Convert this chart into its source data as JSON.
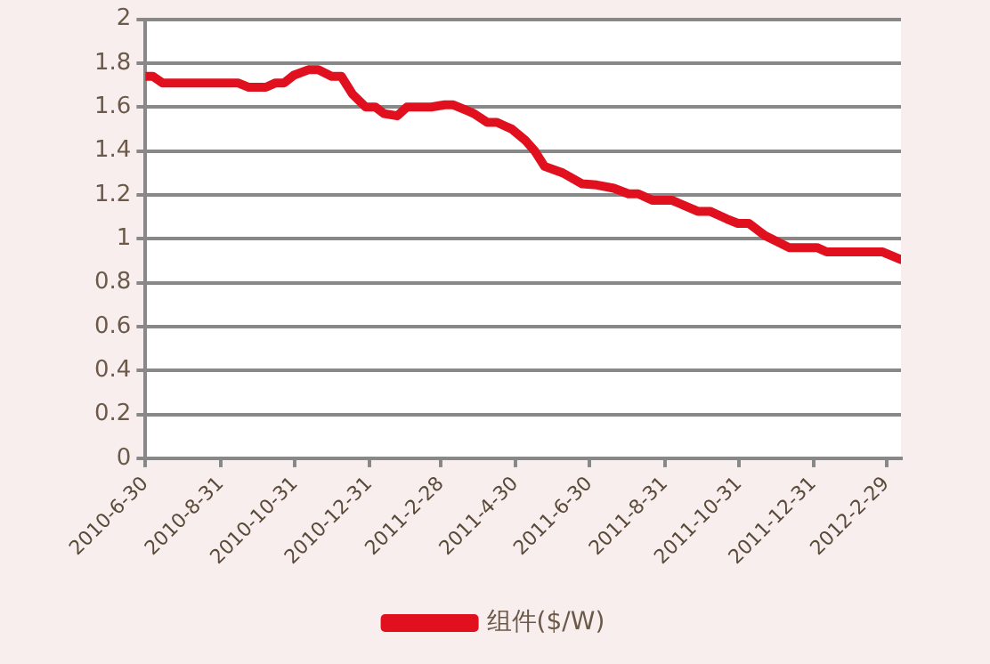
{
  "chart_data": {
    "type": "line",
    "x": [
      "2010-06-30",
      "2010-07-06",
      "2010-07-14",
      "2010-09-14",
      "2010-09-23",
      "2010-10-07",
      "2010-10-15",
      "2010-10-22",
      "2010-10-30",
      "2010-11-11",
      "2010-11-19",
      "2010-11-30",
      "2010-12-08",
      "2010-12-17",
      "2010-12-28",
      "2011-01-05",
      "2011-01-12",
      "2011-01-23",
      "2011-01-31",
      "2011-02-20",
      "2011-03-03",
      "2011-03-10",
      "2011-03-23",
      "2011-03-27",
      "2011-04-07",
      "2011-04-15",
      "2011-04-23",
      "2011-04-27",
      "2011-05-08",
      "2011-05-16",
      "2011-05-24",
      "2011-06-08",
      "2011-06-24",
      "2011-07-06",
      "2011-07-20",
      "2011-08-01",
      "2011-08-09",
      "2011-08-21",
      "2011-09-06",
      "2011-09-27",
      "2011-10-07",
      "2011-10-21",
      "2011-10-30",
      "2011-11-08",
      "2011-11-21",
      "2011-12-11",
      "2012-01-03",
      "2012-01-11",
      "2012-02-26",
      "2012-03-12"
    ],
    "series": [
      {
        "name": "组件($/W)",
        "color": "#e0101e",
        "values": [
          1.74,
          1.74,
          1.71,
          1.71,
          1.69,
          1.69,
          1.71,
          1.71,
          1.745,
          1.77,
          1.77,
          1.74,
          1.74,
          1.66,
          1.6,
          1.6,
          1.57,
          1.56,
          1.6,
          1.6,
          1.61,
          1.61,
          1.58,
          1.57,
          1.53,
          1.53,
          1.51,
          1.5,
          1.45,
          1.4,
          1.33,
          1.3,
          1.25,
          1.245,
          1.23,
          1.205,
          1.205,
          1.175,
          1.175,
          1.125,
          1.125,
          1.09,
          1.07,
          1.07,
          1.015,
          0.96,
          0.96,
          0.94,
          0.94,
          0.905
        ]
      }
    ],
    "xlim": [
      "2010-06-30",
      "2012-03-12"
    ],
    "xticks": [
      {
        "value": "2010-06-30",
        "label": "2010-6-30"
      },
      {
        "value": "2010-08-31",
        "label": "2010-8-31"
      },
      {
        "value": "2010-10-31",
        "label": "2010-10-31"
      },
      {
        "value": "2010-12-31",
        "label": "2010-12-31"
      },
      {
        "value": "2011-02-28",
        "label": "2011-2-28"
      },
      {
        "value": "2011-04-30",
        "label": "2011-4-30"
      },
      {
        "value": "2011-06-30",
        "label": "2011-6-30"
      },
      {
        "value": "2011-08-31",
        "label": "2011-8-31"
      },
      {
        "value": "2011-10-31",
        "label": "2011-10-31"
      },
      {
        "value": "2011-12-31",
        "label": "2011-12-31"
      },
      {
        "value": "2012-02-29",
        "label": "2012-2-29"
      }
    ],
    "ylim": [
      0,
      2
    ],
    "yticks": [
      0,
      0.2,
      0.4,
      0.6,
      0.8,
      1,
      1.2,
      1.4,
      1.6,
      1.8,
      2
    ],
    "grid": "y",
    "legend": "bottom",
    "marker": "none",
    "line_style": "solid"
  }
}
